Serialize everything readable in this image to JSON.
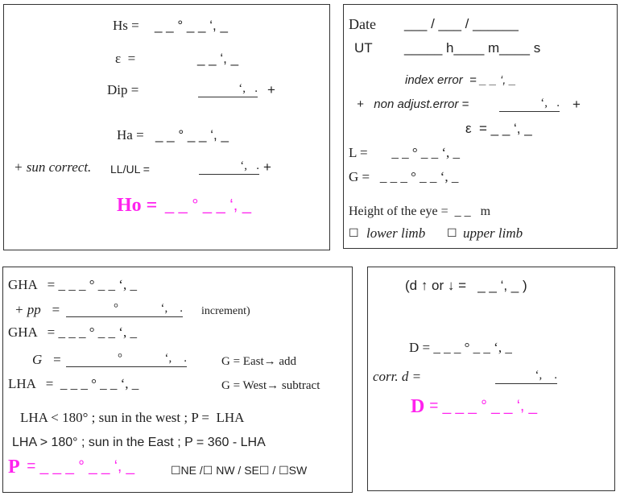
{
  "box1": {
    "hs_label": "Hs =",
    "hs_value": "_ _ ° _ _ ‘, _",
    "eps_label": "ε  =",
    "eps_value": "_ _ ‘, _",
    "dip_label": "Dip =",
    "dip_marks": "‘,   .",
    "dip_sign": "+",
    "ha_label": "Ha =",
    "ha_value": "_ _ ° _ _ ‘, _",
    "sun_label": "+ sun correct.",
    "sun_sub": "LL/UL =",
    "sun_marks": "‘,   .",
    "sun_sign": "+",
    "ho_label": "Ho =",
    "ho_value": "_ _ ° _ _ ‘, _"
  },
  "box2": {
    "date_label": "Date",
    "date_value": "___ / ___ / ______",
    "ut_label": "UT",
    "ut_value": "_____ h____ m____ s",
    "index_error": "index error  = _ _ ‘, _",
    "nonadj_label": "+   non adjust.error =",
    "nonadj_marks": "‘,   .",
    "nonadj_sign": "+",
    "eps": "ε  = _ _ ‘, _",
    "l": "L =       _ _ ° _ _ ‘, _",
    "g": "G =   _ _ _ ° _ _ ‘, _",
    "height_eye": "Height of the eye =  _ _   m",
    "lower_limb": "lower limb",
    "upper_limb": "upper limb"
  },
  "box3": {
    "gha1": "GHA   = _ _ _ ° _ _ ‘, _",
    "pp_label": "+ pp   =",
    "pp_marks": "°              ‘,    .",
    "increment": "increment)",
    "gha2": "GHA   = _ _ _ ° _ _ ‘, _",
    "g_label": "G   =",
    "g_marks": "°              ‘,    .",
    "g_east": "G = East→ add",
    "lha": "LHA   =  _ _ _ ° _ _ ‘, _",
    "g_west": "G = West→ subtract",
    "rule1": "LHA < 180° ; sun in the west ; P =  LHA",
    "rule2": "LHA > 180° ; sun in the East ; P = 360 - LHA",
    "p_label": "P",
    "p_value": " = _ _ _ ° _ _ ‘, _",
    "quadrants": "☐NE /☐ NW / SE☐ / ☐SW"
  },
  "box4": {
    "d_change": "(d ↑ or ↓ =   _ _ ‘, _ )",
    "d1": "D = _ _ _ ° _ _ ‘, _",
    "corr_label": "corr. d =",
    "corr_marks": "‘,    .",
    "d_label": "D",
    "d_value": " = _ _ _ ° _ _ ‘, _"
  },
  "colors": {
    "accent": "#ff22ee",
    "border": "#333333"
  }
}
